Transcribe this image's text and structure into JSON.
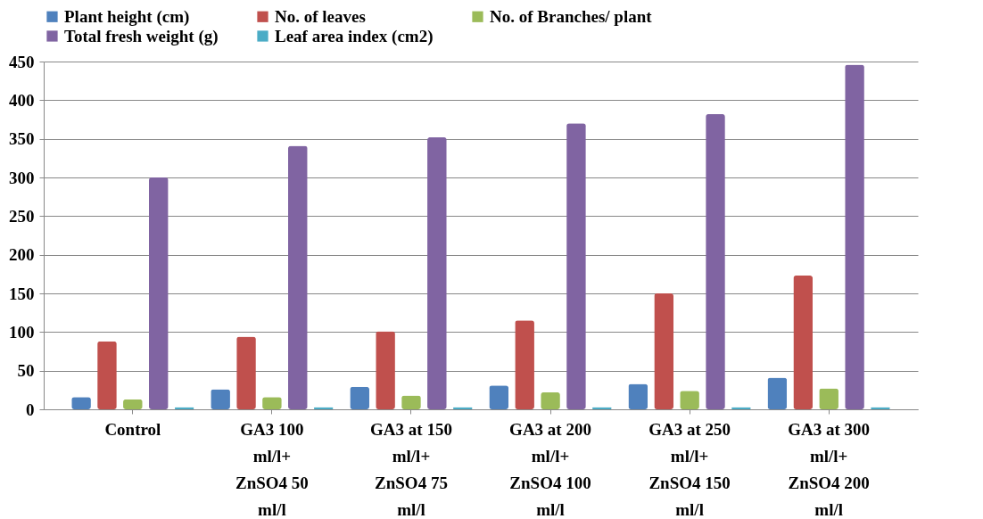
{
  "chart_data": {
    "type": "bar",
    "categories": [
      "Control",
      "GA3 100 ml/l+ ZnSO4 50 ml/l",
      "GA3 at 150 ml/l+ ZnSO4 75 ml/l",
      "GA3 at 200 ml/l+ ZnSO4 100 ml/l",
      "GA3 at 250 ml/l+ ZnSO4 150 ml/l",
      "GA3 at 300 ml/l+ ZnSO4 200 ml/l"
    ],
    "series": [
      {
        "name": "Plant height (cm)",
        "color": "#4f81bd",
        "values": [
          16,
          26,
          29,
          31,
          33,
          41
        ]
      },
      {
        "name": "No. of leaves",
        "color": "#c0504d",
        "values": [
          88,
          94,
          101,
          115,
          150,
          173
        ]
      },
      {
        "name": "No. of Branches/ plant",
        "color": "#9bbb59",
        "values": [
          13,
          16,
          18,
          22,
          24,
          27
        ]
      },
      {
        "name": "Total fresh weight (g)",
        "color": "#8064a2",
        "values": [
          300,
          341,
          352,
          370,
          382,
          446
        ]
      },
      {
        "name": "Leaf area index (cm2)",
        "color": "#4bacc6",
        "values": [
          3,
          3,
          3,
          3,
          3,
          3
        ]
      }
    ],
    "ylim": [
      0,
      450
    ],
    "yticks": [
      0,
      50,
      100,
      150,
      200,
      250,
      300,
      350,
      400,
      450
    ],
    "grid": "y",
    "legend": "top"
  }
}
